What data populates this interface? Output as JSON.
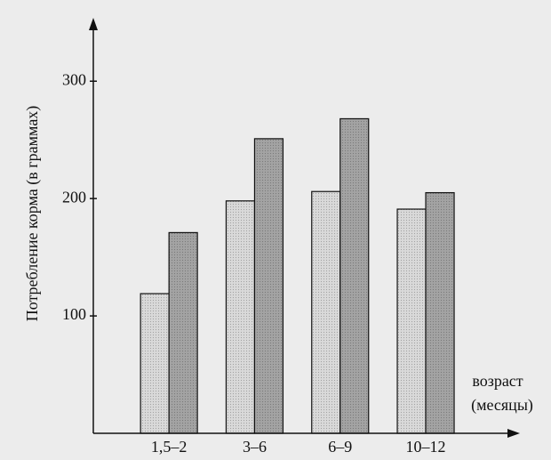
{
  "chart_data": {
    "type": "bar",
    "ylabel": "Потребление корма (в граммах)",
    "xlabel": [
      "возраст",
      "(месяцы)"
    ],
    "categories": [
      "1,5–2",
      "3–6",
      "6–9",
      "10–12"
    ],
    "series": [
      {
        "color": "#d9d9d9",
        "values": [
          119,
          198,
          206,
          191
        ]
      },
      {
        "color": "#a3a3a3",
        "values": [
          171,
          251,
          268,
          205
        ]
      }
    ],
    "ylim": [
      0,
      354
    ],
    "yticks": [
      100,
      200,
      300
    ],
    "grid": false
  }
}
